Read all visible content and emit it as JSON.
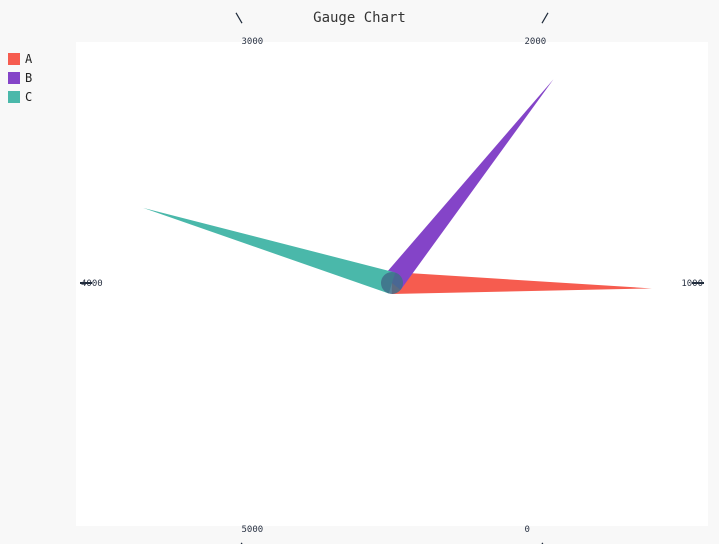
{
  "chart_data": {
    "type": "gauge",
    "title": "Gauge Chart",
    "min": 0,
    "max": 6000,
    "ticks": [
      0,
      1000,
      2000,
      3000,
      4000,
      5000
    ],
    "tick_labels": [
      "0",
      "1000",
      "2000",
      "3000",
      "4000",
      "5000"
    ],
    "legend_position": "top-left",
    "series": [
      {
        "name": "A",
        "value": 980,
        "color": "#f65c4f"
      },
      {
        "name": "B",
        "value": 1860,
        "color": "#8444c8"
      },
      {
        "name": "C",
        "value": 3720,
        "color": "#4ab8aa"
      }
    ]
  }
}
